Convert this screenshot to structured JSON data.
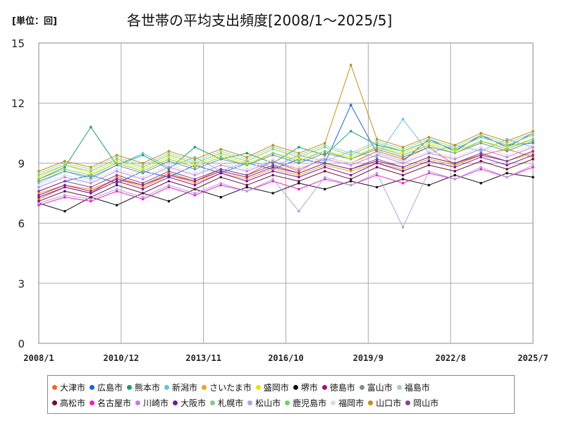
{
  "unit_label": "[単位：回]",
  "title": "各世帯の平均支出頻度[2008/1～2025/5]",
  "chart_data": {
    "type": "line",
    "title": "各世帯の平均支出頻度[2008/1～2025/5]",
    "unit": "[単位：回]",
    "xlabel": "",
    "ylabel": "",
    "ylim": [
      0,
      15
    ],
    "yticks": [
      0,
      3,
      6,
      9,
      12,
      15
    ],
    "x_start": "2008/1",
    "x_end": "2025/5",
    "xticks": [
      "2008/1",
      "2010/12",
      "2013/11",
      "2016/10",
      "2019/9",
      "2022/8",
      "2025/7"
    ],
    "grid": true,
    "legend_position": "bottom",
    "series_count": 20,
    "series": [
      {
        "name": "大津市",
        "color": "#f26522",
        "values": [
          7.2,
          7.8,
          7.5,
          8.3,
          7.9,
          8.5,
          8.1,
          8.7,
          8.4,
          9.1,
          8.6,
          9.3,
          9.0,
          9.6,
          9.2,
          9.8,
          8.9,
          9.4,
          9.7,
          9.3
        ]
      },
      {
        "name": "広島市",
        "color": "#1f5fe0",
        "values": [
          7.6,
          8.1,
          8.4,
          8.0,
          8.6,
          8.3,
          8.9,
          8.5,
          9.0,
          8.7,
          9.2,
          9.0,
          11.9,
          9.5,
          9.1,
          10.2,
          9.6,
          10.4,
          9.8,
          10.5
        ]
      },
      {
        "name": "熊本市",
        "color": "#1a9e77",
        "values": [
          8.2,
          8.8,
          10.8,
          8.9,
          9.4,
          8.7,
          9.8,
          9.2,
          9.5,
          9.0,
          9.8,
          9.4,
          10.6,
          9.9,
          9.6,
          10.1,
          9.7,
          10.3,
          9.9,
          10.0
        ]
      },
      {
        "name": "新潟市",
        "color": "#66c2e8",
        "values": [
          8.0,
          8.6,
          8.2,
          8.9,
          9.5,
          8.8,
          9.3,
          8.6,
          9.1,
          8.8,
          9.4,
          9.1,
          9.6,
          9.3,
          11.2,
          9.5,
          9.9,
          9.6,
          10.2,
          9.8
        ]
      },
      {
        "name": "さいたま市",
        "color": "#f0a020",
        "values": [
          7.5,
          7.9,
          7.7,
          8.2,
          7.8,
          8.4,
          8.0,
          8.5,
          8.2,
          8.7,
          8.4,
          8.9,
          8.6,
          9.0,
          8.7,
          9.2,
          8.9,
          9.4,
          9.1,
          9.5
        ]
      },
      {
        "name": "盛岡市",
        "color": "#f5e000",
        "values": [
          8.3,
          8.9,
          8.5,
          9.1,
          8.7,
          9.3,
          8.9,
          9.4,
          9.0,
          9.5,
          9.2,
          9.6,
          9.3,
          9.8,
          9.5,
          10.0,
          9.6,
          10.1,
          9.8,
          10.2
        ]
      },
      {
        "name": "堺市",
        "color": "#111111",
        "values": [
          7.0,
          6.6,
          7.3,
          6.9,
          7.5,
          7.1,
          7.7,
          7.3,
          7.8,
          7.5,
          8.0,
          7.7,
          8.1,
          7.8,
          8.2,
          7.9,
          8.4,
          8.0,
          8.5,
          8.3
        ]
      },
      {
        "name": "徳島市",
        "color": "#a0147e",
        "values": [
          7.4,
          7.9,
          7.6,
          8.2,
          7.9,
          8.4,
          8.1,
          8.6,
          8.3,
          8.8,
          8.5,
          9.0,
          8.7,
          9.1,
          8.8,
          9.3,
          9.0,
          9.4,
          9.1,
          9.6
        ]
      },
      {
        "name": "富山市",
        "color": "#7d8c96",
        "values": [
          8.1,
          8.6,
          8.3,
          8.9,
          8.5,
          9.1,
          8.7,
          9.2,
          8.9,
          9.4,
          9.0,
          9.5,
          9.2,
          9.7,
          9.3,
          9.8,
          9.5,
          10.0,
          9.6,
          10.1
        ]
      },
      {
        "name": "福島市",
        "color": "#99d9a8",
        "values": [
          8.5,
          9.0,
          8.7,
          9.3,
          8.9,
          9.5,
          9.1,
          9.6,
          9.2,
          9.8,
          9.4,
          9.9,
          9.5,
          10.1,
          9.7,
          10.2,
          9.8,
          10.4,
          10.0,
          10.5
        ]
      },
      {
        "name": "高松市",
        "color": "#6b0f3a",
        "values": [
          7.1,
          7.6,
          7.3,
          7.9,
          7.5,
          8.1,
          7.7,
          8.3,
          7.9,
          8.4,
          8.1,
          8.6,
          8.2,
          8.8,
          8.4,
          8.9,
          8.6,
          9.1,
          8.7,
          9.2
        ]
      },
      {
        "name": "名古屋市",
        "color": "#ee1ec8",
        "values": [
          6.9,
          7.3,
          7.1,
          7.6,
          7.2,
          7.8,
          7.4,
          7.9,
          7.6,
          8.1,
          7.7,
          8.2,
          7.9,
          8.4,
          8.0,
          8.5,
          8.2,
          8.7,
          8.3,
          8.8
        ]
      },
      {
        "name": "川崎市",
        "color": "#c97ce0",
        "values": [
          7.8,
          8.3,
          8.0,
          8.6,
          8.2,
          8.8,
          8.4,
          8.9,
          8.6,
          9.1,
          8.7,
          9.2,
          8.9,
          9.4,
          9.0,
          9.5,
          9.2,
          9.7,
          9.3,
          9.8
        ]
      },
      {
        "name": "大阪市",
        "color": "#6a1aa8",
        "values": [
          7.3,
          7.8,
          7.5,
          8.1,
          7.7,
          8.3,
          7.9,
          8.5,
          8.1,
          8.6,
          8.3,
          8.8,
          8.4,
          9.0,
          8.6,
          9.1,
          8.8,
          9.3,
          8.9,
          9.4
        ]
      },
      {
        "name": "札幌市",
        "color": "#8cc88c",
        "values": [
          8.4,
          8.9,
          8.6,
          9.2,
          8.8,
          9.4,
          9.0,
          9.5,
          9.1,
          9.7,
          9.3,
          9.8,
          9.4,
          10.0,
          9.6,
          10.1,
          9.7,
          10.3,
          9.9,
          10.4
        ]
      },
      {
        "name": "松山市",
        "color": "#b0a4e0",
        "values": [
          7.0,
          7.4,
          7.2,
          7.7,
          7.3,
          7.9,
          7.5,
          8.0,
          7.6,
          8.2,
          6.6,
          8.3,
          7.9,
          8.5,
          5.8,
          8.6,
          8.2,
          8.8,
          8.3,
          8.9
        ]
      },
      {
        "name": "鹿児島市",
        "color": "#6fcf6f",
        "values": [
          8.2,
          8.7,
          8.4,
          9.0,
          8.6,
          9.2,
          8.8,
          9.3,
          8.9,
          9.5,
          9.1,
          9.6,
          9.2,
          9.8,
          9.4,
          9.9,
          9.5,
          10.1,
          9.7,
          10.2
        ]
      },
      {
        "name": "福岡市",
        "color": "#dddddd",
        "values": [
          7.9,
          8.4,
          8.1,
          8.7,
          8.3,
          8.9,
          8.5,
          9.0,
          8.7,
          9.2,
          8.8,
          9.3,
          9.0,
          9.5,
          9.1,
          9.6,
          9.3,
          9.8,
          9.4,
          9.9
        ]
      },
      {
        "name": "山口市",
        "color": "#c0901a",
        "values": [
          8.6,
          9.1,
          8.8,
          9.4,
          9.0,
          9.6,
          9.2,
          9.7,
          9.3,
          9.9,
          9.5,
          10.0,
          13.9,
          10.2,
          9.8,
          10.3,
          9.9,
          10.5,
          10.1,
          10.6
        ]
      },
      {
        "name": "岡山市",
        "color": "#7a4a8a",
        "values": [
          7.6,
          8.1,
          7.8,
          8.4,
          8.0,
          8.6,
          8.2,
          8.7,
          8.4,
          8.9,
          8.5,
          9.0,
          8.7,
          9.2,
          8.8,
          9.3,
          9.0,
          9.5,
          9.1,
          9.6
        ]
      }
    ]
  }
}
